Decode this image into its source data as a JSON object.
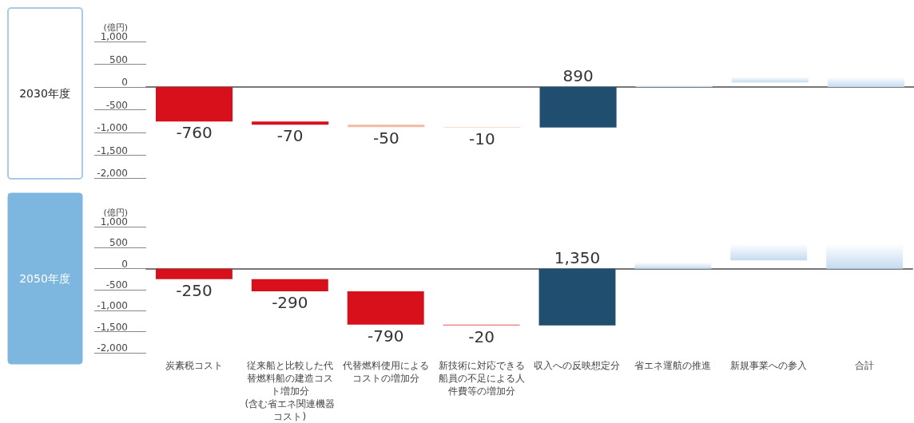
{
  "chart_data": [
    {
      "type": "bar",
      "title": "2030年度",
      "ylabel": "(億円)",
      "categories": [
        "炭素税コスト",
        "従来船と比較した代替燃料船の建造コスト増加分\n(含む省エネ関連機器コスト)",
        "代替燃料使用によるコストの増加分",
        "新技術に対応できる船員の不足による人件費等の増加分",
        "収入への反映想定分",
        "省エネ運航の推進",
        "新規事業への参入",
        "合計"
      ],
      "values": [
        -760,
        -70,
        -50,
        -10,
        890,
        40,
        120,
        220
      ],
      "base": [
        0,
        -760,
        -830,
        -880,
        -890,
        0,
        100,
        0
      ],
      "colors": [
        "#d7101c",
        "#d7101c",
        "#f4b9a3",
        "#f4b9a3",
        "#1f4e6e",
        "#c5dbf1",
        "#c5dbf1",
        "#c5dbf1"
      ],
      "value_labels": [
        "-760",
        "-70",
        "-50",
        "-10",
        "890",
        null,
        null,
        null
      ],
      "ylim": [
        -2000,
        1000
      ],
      "yticks": [
        {
          "value": 1000,
          "label": "1,000"
        },
        500,
        0,
        -500,
        {
          "value": -1000,
          "label": "-1,000"
        },
        {
          "value": -1500,
          "label": "-1,500"
        },
        {
          "value": -2000,
          "label": "-2,000"
        }
      ],
      "tick_labels": "y"
    },
    {
      "type": "bar",
      "title": "2050年度",
      "ylabel": "(億円)",
      "categories": [
        "炭素税コスト",
        "従来船と比較した代替燃料船の建造コスト増加分\n(含む省エネ関連機器コスト)",
        "代替燃料使用によるコストの増加分",
        "新技術に対応できる船員の不足による人件費等の増加分",
        "収入への反映想定分",
        "省エネ運航の推進",
        "新規事業への参入",
        "合計"
      ],
      "values": [
        -250,
        -290,
        -790,
        -20,
        1350,
        150,
        390,
        590
      ],
      "base": [
        0,
        -250,
        -540,
        -1330,
        -1350,
        0,
        200,
        0
      ],
      "colors": [
        "#d7101c",
        "#d7101c",
        "#d7101c",
        "#e8555a",
        "#1f4e6e",
        "#c5dbf1",
        "#c5dbf1",
        "#c5dbf1"
      ],
      "value_labels": [
        "-250",
        "-290",
        "-790",
        "-20",
        "1,350",
        null,
        null,
        null
      ],
      "ylim": [
        -2000,
        1000
      ],
      "yticks": [
        {
          "value": 1000,
          "label": "1,000"
        },
        500,
        0,
        -500,
        {
          "value": -1000,
          "label": "-1,000"
        },
        {
          "value": -1500,
          "label": "-1,500"
        },
        {
          "value": -2000,
          "label": "-2,000"
        }
      ]
    }
  ]
}
